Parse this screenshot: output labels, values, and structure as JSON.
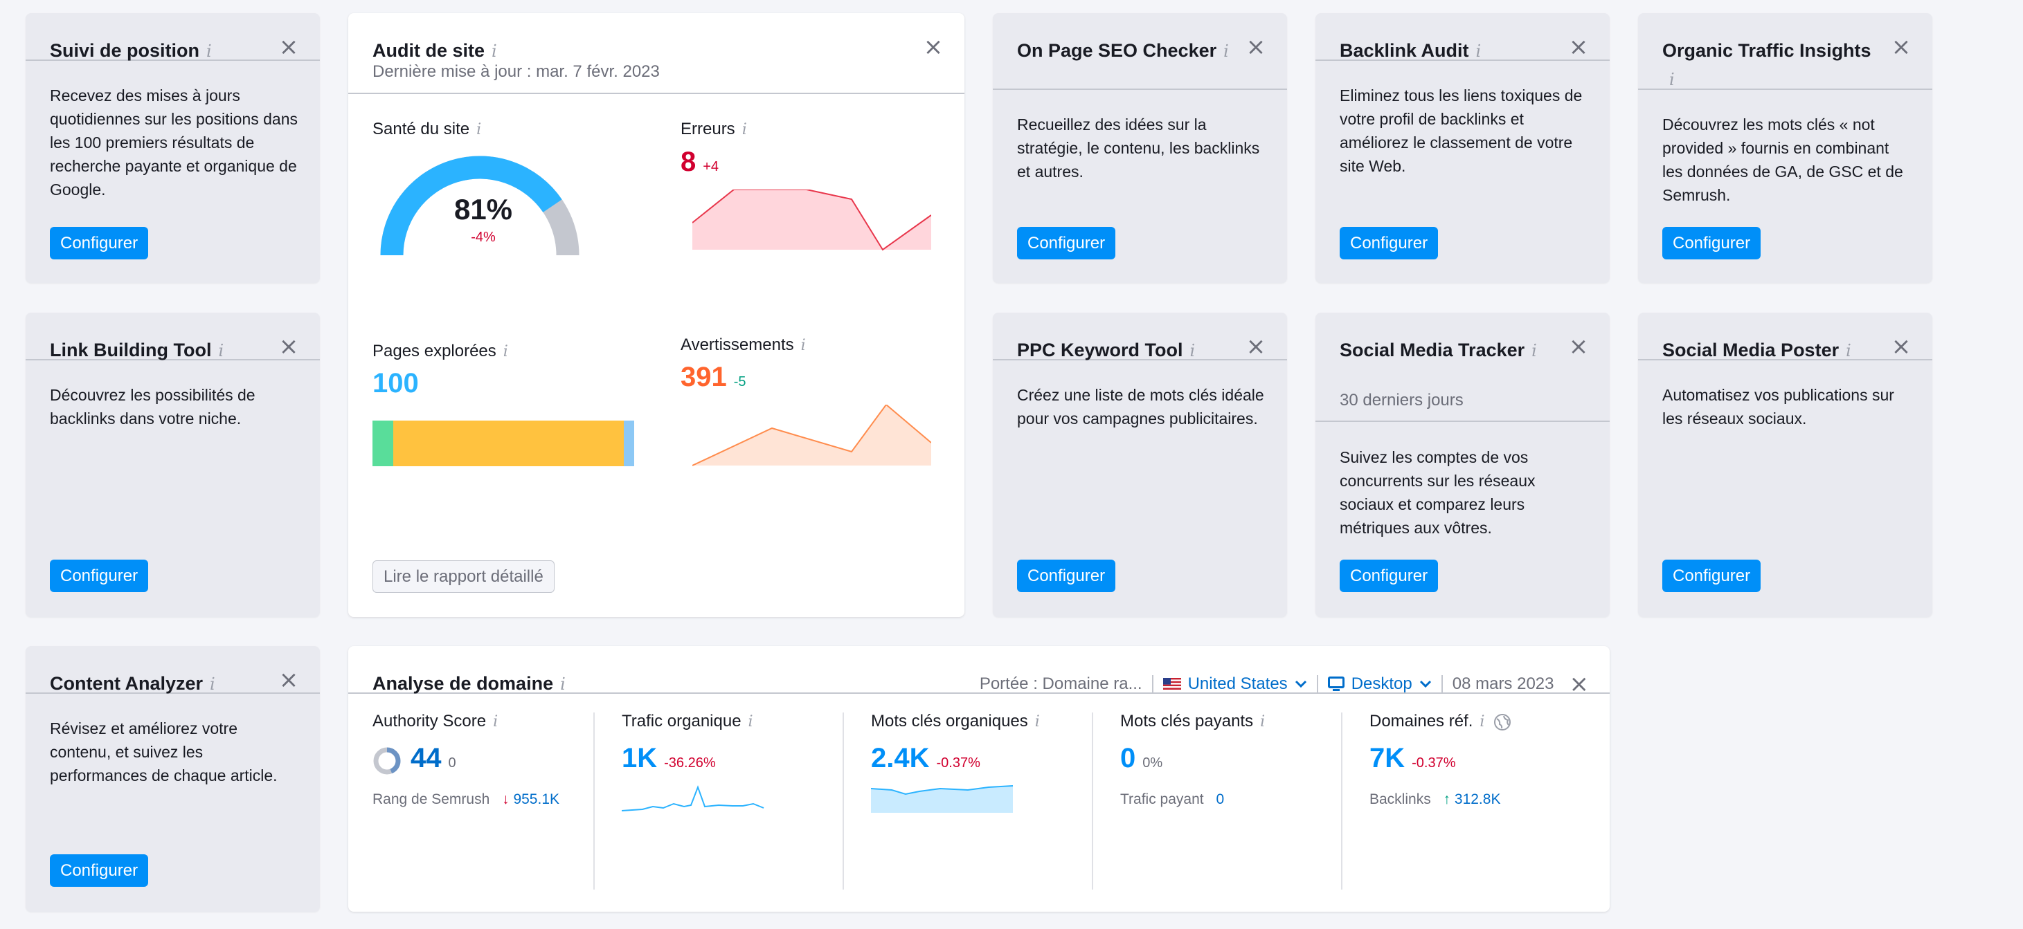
{
  "cards": {
    "suivi": {
      "title": "Suivi de position",
      "desc": "Recevez des mises à jours quotidiennes sur les positions dans les 100 premiers résultats de recherche payante et organique de Google.",
      "button": "Configurer"
    },
    "onpage": {
      "title": "On Page SEO Checker",
      "desc": "Recueillez des idées sur la stratégie, le contenu, les backlinks et autres.",
      "button": "Configurer"
    },
    "backlink": {
      "title": "Backlink Audit",
      "desc": "Eliminez tous les liens toxiques de votre profil de backlinks et améliorez le classement de votre site Web.",
      "button": "Configurer"
    },
    "organic": {
      "title": "Organic Traffic Insights",
      "desc": "Découvrez les mots clés « not provided » fournis en combinant les données de GA, de GSC et de Semrush.",
      "button": "Configurer"
    },
    "linkbuilding": {
      "title": "Link Building Tool",
      "desc": "Découvrez les possibilités de backlinks dans votre niche.",
      "button": "Configurer"
    },
    "ppc": {
      "title": "PPC Keyword Tool",
      "desc": "Créez une liste de mots clés idéale pour vos campagnes publicitaires.",
      "button": "Configurer"
    },
    "social_tracker": {
      "title": "Social Media Tracker",
      "subtitle": "30 derniers jours",
      "desc": "Suivez les comptes de vos concurrents sur les réseaux sociaux et comparez leurs métriques aux vôtres.",
      "button": "Configurer"
    },
    "social_poster": {
      "title": "Social Media Poster",
      "desc": "Automatisez vos publications sur les réseaux sociaux.",
      "button": "Configurer"
    },
    "content": {
      "title": "Content Analyzer",
      "desc": "Révisez et améliorez votre contenu, et suivez les performances de chaque article.",
      "button": "Configurer"
    }
  },
  "audit": {
    "title": "Audit de site",
    "updated": "Dernière mise à jour : mar. 7 févr. 2023",
    "health": {
      "label": "Santé du site",
      "value": "81%",
      "delta": "-4%",
      "percent": 81
    },
    "errors": {
      "label": "Erreurs",
      "value": "8",
      "delta": "+4"
    },
    "pages": {
      "label": "Pages explorées",
      "value": "100",
      "segments": [
        8,
        88,
        4
      ]
    },
    "warnings": {
      "label": "Avertissements",
      "value": "391",
      "delta": "-5"
    },
    "button": "Lire le rapport détaillé"
  },
  "domain": {
    "title": "Analyse de domaine",
    "scope": "Portée : Domaine ra...",
    "country": "United States",
    "device": "Desktop",
    "date": "08 mars 2023",
    "metrics": [
      {
        "label": "Authority Score",
        "value": "44",
        "delta": "0",
        "sub_label": "Rang de Semrush",
        "sub_value": "955.1K"
      },
      {
        "label": "Trafic organique",
        "value": "1K",
        "delta": "-36.26%"
      },
      {
        "label": "Mots clés organiques",
        "value": "2.4K",
        "delta": "-0.37%"
      },
      {
        "label": "Mots clés payants",
        "value": "0",
        "delta": "0%",
        "sub_label": "Trafic payant",
        "sub_value": "0"
      },
      {
        "label": "Domaines réf.",
        "value": "7K",
        "delta": "-0.37%",
        "sub_label": "Backlinks",
        "sub_value": "312.8K"
      }
    ]
  },
  "icons": {
    "info": "i",
    "close": "×",
    "chevron": "⌄",
    "arrow_down": "↓",
    "arrow_up": "↑"
  },
  "colors": {
    "primary": "#008ff8",
    "error": "#d1002f",
    "warning": "#ff642d",
    "positive": "#009f81",
    "accent_blue": "#2bb3ff"
  }
}
